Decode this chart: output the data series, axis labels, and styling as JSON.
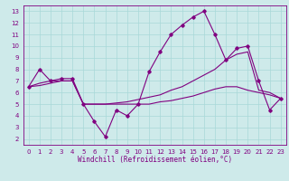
{
  "lines": [
    {
      "x": [
        0,
        1,
        2,
        3,
        4,
        5,
        6,
        7,
        8,
        9,
        10,
        11,
        12,
        13,
        14,
        15,
        16,
        17,
        18,
        19,
        20,
        21,
        22,
        23
      ],
      "y": [
        6.5,
        8.0,
        7.0,
        7.2,
        7.2,
        5.0,
        3.5,
        2.2,
        4.5,
        4.0,
        5.0,
        7.8,
        9.5,
        11.0,
        11.8,
        12.5,
        13.0,
        11.0,
        8.8,
        9.8,
        10.0,
        7.0,
        4.5,
        5.5
      ],
      "color": "#800080",
      "marker": "D",
      "markersize": 1.8,
      "linewidth": 0.8
    },
    {
      "x": [
        0,
        1,
        2,
        3,
        4,
        5,
        6,
        7,
        8,
        9,
        10,
        11,
        12,
        13,
        14,
        15,
        16,
        17,
        18,
        19,
        20,
        21,
        22,
        23
      ],
      "y": [
        6.5,
        6.8,
        7.0,
        7.0,
        7.0,
        5.0,
        5.0,
        5.0,
        5.1,
        5.2,
        5.4,
        5.6,
        5.8,
        6.2,
        6.5,
        7.0,
        7.5,
        8.0,
        8.8,
        9.3,
        9.5,
        6.2,
        6.0,
        5.5
      ],
      "color": "#800080",
      "marker": null,
      "markersize": 0,
      "linewidth": 0.8
    },
    {
      "x": [
        0,
        1,
        2,
        3,
        4,
        5,
        6,
        7,
        8,
        9,
        10,
        11,
        12,
        13,
        14,
        15,
        16,
        17,
        18,
        19,
        20,
        21,
        22,
        23
      ],
      "y": [
        6.5,
        6.6,
        6.8,
        7.0,
        7.0,
        5.0,
        5.0,
        5.0,
        5.0,
        5.0,
        5.0,
        5.0,
        5.2,
        5.3,
        5.5,
        5.7,
        6.0,
        6.3,
        6.5,
        6.5,
        6.2,
        6.0,
        5.8,
        5.5
      ],
      "color": "#800080",
      "marker": null,
      "markersize": 0,
      "linewidth": 0.8
    }
  ],
  "xlabel": "Windchill (Refroidissement éolien,°C)",
  "xlim": [
    -0.5,
    23.5
  ],
  "ylim": [
    1.5,
    13.5
  ],
  "yticks": [
    2,
    3,
    4,
    5,
    6,
    7,
    8,
    9,
    10,
    11,
    12,
    13
  ],
  "xticks": [
    0,
    1,
    2,
    3,
    4,
    5,
    6,
    7,
    8,
    9,
    10,
    11,
    12,
    13,
    14,
    15,
    16,
    17,
    18,
    19,
    20,
    21,
    22,
    23
  ],
  "bg_color": "#ceeaea",
  "grid_color": "#a8d8d8",
  "line_color": "#800080",
  "tick_color": "#800080",
  "label_color": "#800080",
  "tick_fontsize": 5.0,
  "label_fontsize": 5.5
}
